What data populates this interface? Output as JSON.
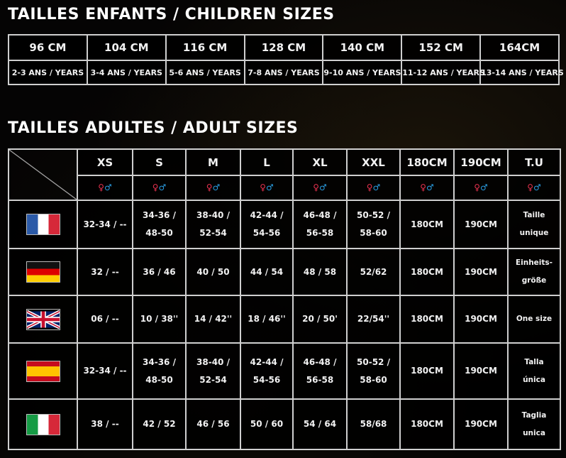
{
  "children": {
    "title": "TAILLES ENFANTS / CHILDREN SIZES",
    "sizes": [
      "96 CM",
      "104 CM",
      "116 CM",
      "128 CM",
      "140 CM",
      "152 CM",
      "164CM"
    ],
    "ages": [
      "2-3 ANS / YEARS",
      "3-4 ANS / YEARS",
      "5-6 ANS / YEARS",
      "7-8 ANS / YEARS",
      "9-10 ANS / YEARS",
      "11-12 ANS / YEARS",
      "13-14 ANS / YEARS"
    ]
  },
  "adult": {
    "title": "TAILLES ADULTES / ADULT SIZES",
    "columns": [
      "XS",
      "S",
      "M",
      "L",
      "XL",
      "XXL",
      "180CM",
      "190CM",
      "T.U"
    ],
    "gender_symbol_female": "♀",
    "gender_symbol_male": "♂",
    "colors": {
      "female": "#e8324f",
      "male": "#2a9ce0"
    },
    "rows": [
      {
        "country": "france",
        "flag": "flag-france-icon",
        "values": [
          "32-34 / --",
          "34-36 / 48-50",
          "38-40 / 52-54",
          "42-44 / 54-56",
          "46-48 / 56-58",
          "50-52 / 58-60",
          "180CM",
          "190CM",
          "Taille unique"
        ]
      },
      {
        "country": "germany",
        "flag": "flag-germany-icon",
        "values": [
          "32 / --",
          "36 / 46",
          "40 / 50",
          "44 / 54",
          "48 / 58",
          "52/62",
          "180CM",
          "190CM",
          "Einheits-größe"
        ]
      },
      {
        "country": "uk",
        "flag": "flag-uk-icon",
        "values": [
          "06 / --",
          "10 / 38''",
          "14 / 42''",
          "18 / 46''",
          "20 / 50'",
          "22/54''",
          "180CM",
          "190CM",
          "One size"
        ]
      },
      {
        "country": "spain",
        "flag": "flag-spain-icon",
        "values": [
          "32-34 / --",
          "34-36 / 48-50",
          "38-40 / 52-54",
          "42-44 / 54-56",
          "46-48 / 56-58",
          "50-52 / 58-60",
          "180CM",
          "190CM",
          "Talla única"
        ]
      },
      {
        "country": "italy",
        "flag": "flag-italy-icon",
        "values": [
          "38 / --",
          "42 / 52",
          "46 / 56",
          "50 / 60",
          "54 / 64",
          "58/68",
          "180CM",
          "190CM",
          "Taglia unica"
        ]
      }
    ]
  }
}
